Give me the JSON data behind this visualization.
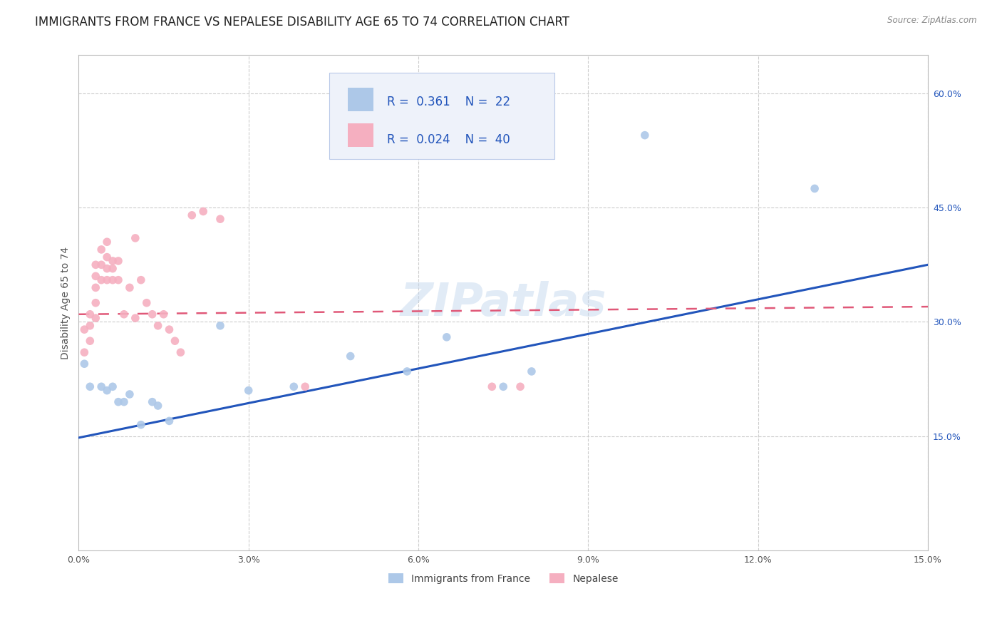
{
  "title": "IMMIGRANTS FROM FRANCE VS NEPALESE DISABILITY AGE 65 TO 74 CORRELATION CHART",
  "source": "Source: ZipAtlas.com",
  "ylabel": "Disability Age 65 to 74",
  "x_label_france": "Immigrants from France",
  "x_label_nepalese": "Nepalese",
  "xlim": [
    0,
    0.15
  ],
  "ylim": [
    0,
    0.65
  ],
  "xtick_labels": [
    "0.0%",
    "3.0%",
    "6.0%",
    "9.0%",
    "12.0%",
    "15.0%"
  ],
  "xtick_vals": [
    0,
    0.03,
    0.06,
    0.09,
    0.12,
    0.15
  ],
  "ytick_labels": [
    "15.0%",
    "30.0%",
    "45.0%",
    "60.0%"
  ],
  "ytick_vals": [
    0.15,
    0.3,
    0.45,
    0.6
  ],
  "france_R": 0.361,
  "france_N": 22,
  "nepalese_R": 0.024,
  "nepalese_N": 40,
  "france_color": "#adc8e8",
  "nepalese_color": "#f5afc0",
  "france_line_color": "#2255bb",
  "nepalese_line_color": "#e05878",
  "watermark": "ZIPatlas",
  "france_x": [
    0.001,
    0.002,
    0.004,
    0.005,
    0.006,
    0.007,
    0.008,
    0.009,
    0.011,
    0.013,
    0.014,
    0.016,
    0.025,
    0.03,
    0.038,
    0.048,
    0.058,
    0.065,
    0.075,
    0.08,
    0.1,
    0.13
  ],
  "france_y": [
    0.245,
    0.215,
    0.215,
    0.21,
    0.215,
    0.195,
    0.195,
    0.205,
    0.165,
    0.195,
    0.19,
    0.17,
    0.295,
    0.21,
    0.215,
    0.255,
    0.235,
    0.28,
    0.215,
    0.235,
    0.545,
    0.475
  ],
  "nepalese_x": [
    0.001,
    0.001,
    0.002,
    0.002,
    0.002,
    0.003,
    0.003,
    0.003,
    0.003,
    0.003,
    0.004,
    0.004,
    0.004,
    0.005,
    0.005,
    0.005,
    0.005,
    0.006,
    0.006,
    0.006,
    0.007,
    0.007,
    0.008,
    0.009,
    0.01,
    0.01,
    0.011,
    0.012,
    0.013,
    0.014,
    0.015,
    0.016,
    0.017,
    0.018,
    0.02,
    0.022,
    0.025,
    0.04,
    0.073,
    0.078
  ],
  "nepalese_y": [
    0.26,
    0.29,
    0.31,
    0.295,
    0.275,
    0.375,
    0.36,
    0.345,
    0.325,
    0.305,
    0.395,
    0.375,
    0.355,
    0.405,
    0.385,
    0.37,
    0.355,
    0.38,
    0.37,
    0.355,
    0.38,
    0.355,
    0.31,
    0.345,
    0.305,
    0.41,
    0.355,
    0.325,
    0.31,
    0.295,
    0.31,
    0.29,
    0.275,
    0.26,
    0.44,
    0.445,
    0.435,
    0.215,
    0.215,
    0.215
  ],
  "france_trend_x": [
    0.0,
    0.15
  ],
  "france_trend_y": [
    0.148,
    0.375
  ],
  "nepalese_trend_x": [
    0.0,
    0.15
  ],
  "nepalese_trend_y": [
    0.31,
    0.32
  ],
  "grid_color": "#cccccc",
  "background_color": "#ffffff",
  "legend_box_color": "#eef2fa",
  "legend_border_color": "#b8c8e8",
  "r_value_color": "#2255bb",
  "title_fontsize": 12,
  "axis_label_fontsize": 10,
  "tick_fontsize": 9,
  "marker_size": 70
}
